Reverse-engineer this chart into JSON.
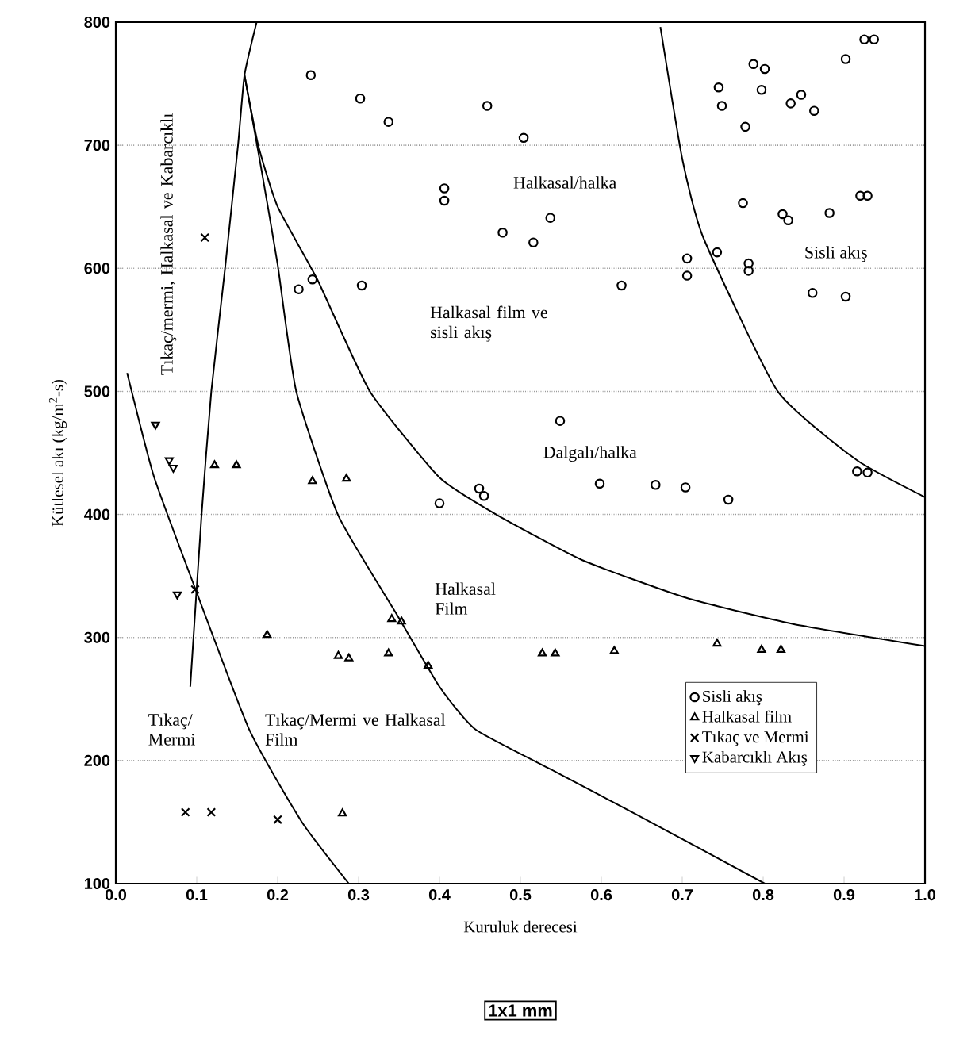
{
  "chart_data": {
    "type": "scatter",
    "xlabel": "Kuruluk derecesi",
    "ylabel": "Kütlesel akı (kg/m$^{2}$-s)",
    "xlim": [
      0,
      1
    ],
    "ylim": [
      100,
      800
    ],
    "xticks": [
      {
        "value": 0,
        "label": "0.0"
      },
      {
        "value": 0.1,
        "label": "0.1"
      },
      {
        "value": 0.2,
        "label": "0.2"
      },
      {
        "value": 0.3,
        "label": "0.3"
      },
      {
        "value": 0.4,
        "label": "0.4"
      },
      {
        "value": 0.5,
        "label": "0.5"
      },
      {
        "value": 0.6,
        "label": "0.6"
      },
      {
        "value": 0.7,
        "label": "0.7"
      },
      {
        "value": 0.8,
        "label": "0.8"
      },
      {
        "value": 0.9,
        "label": "0.9"
      },
      {
        "value": 1,
        "label": "1.0"
      }
    ],
    "yticks": [
      100,
      200,
      300,
      400,
      500,
      600,
      700,
      800
    ],
    "grid": "y",
    "legend": "bottom right",
    "series": [
      {
        "name": "Sisli akış",
        "color": "#000000",
        "marker": "circle",
        "x": [
          0.241,
          0.302,
          0.337,
          0.459,
          0.406,
          0.406,
          0.478,
          0.226,
          0.243,
          0.304,
          0.4,
          0.449,
          0.455,
          0.504,
          0.537,
          0.516,
          0.625,
          0.549,
          0.598,
          0.667,
          0.704,
          0.757,
          0.916,
          0.929,
          0.925,
          0.937,
          0.902,
          0.788,
          0.802,
          0.745,
          0.749,
          0.798,
          0.847,
          0.834,
          0.863,
          0.778,
          0.775,
          0.824,
          0.831,
          0.882,
          0.92,
          0.929,
          0.706,
          0.706,
          0.743,
          0.782,
          0.782,
          0.861,
          0.902
        ],
        "values": [
          757,
          738,
          719,
          732,
          665,
          655,
          629,
          583,
          591,
          586,
          409,
          421,
          415,
          706,
          641,
          621,
          586,
          476,
          425,
          424,
          422,
          412,
          435,
          434,
          786,
          786,
          770,
          766,
          762,
          747,
          732,
          745,
          741,
          734,
          728,
          715,
          653,
          644,
          639,
          645,
          659,
          659,
          608,
          594,
          613,
          604,
          598,
          580,
          577
        ]
      },
      {
        "name": "Halkasal film",
        "color": "#000000",
        "marker": "triangle",
        "x": [
          0.122,
          0.149,
          0.243,
          0.285,
          0.187,
          0.275,
          0.288,
          0.337,
          0.341,
          0.353,
          0.386,
          0.28,
          0.527,
          0.543,
          0.616,
          0.743,
          0.798,
          0.822
        ],
        "values": [
          440,
          440,
          427,
          429,
          302,
          285,
          283,
          287,
          315,
          313,
          277,
          157,
          287,
          287,
          289,
          295,
          290,
          290
        ]
      },
      {
        "name": "Tıkaç ve Mermi",
        "color": "#000000",
        "marker": "cross",
        "x": [
          0.086,
          0.118,
          0.2,
          0.098,
          0.11
        ],
        "values": [
          158,
          158,
          152,
          339,
          625
        ]
      },
      {
        "name": "Kabarcıklı Akış",
        "color": "#000000",
        "marker": "triangle-down",
        "x": [
          0.076,
          0.049,
          0.066,
          0.071
        ],
        "values": [
          335,
          473,
          444,
          438
        ]
      },
      {
        "type": "line",
        "color": "#000000",
        "marker": "none",
        "line_style": "solid",
        "x": [
          0.014,
          0.047,
          0.098,
          0.165,
          0.23,
          0.288
        ],
        "values": [
          515,
          431,
          340,
          225,
          150,
          100
        ]
      },
      {
        "type": "line",
        "color": "#000000",
        "marker": "none",
        "line_style": "solid",
        "x": [
          0.092,
          0.106,
          0.118,
          0.135,
          0.151,
          0.159,
          0.174
        ],
        "values": [
          260,
          400,
          500,
          600,
          700,
          757,
          800
        ]
      },
      {
        "type": "line",
        "color": "#000000",
        "marker": "none",
        "line_style": "solid",
        "x": [
          0.159,
          0.18,
          0.2,
          0.223,
          0.275,
          0.347,
          0.4,
          0.445,
          0.543,
          0.641,
          0.802
        ],
        "values": [
          757,
          680,
          603,
          500,
          399,
          319,
          260,
          225,
          191,
          157,
          100
        ]
      },
      {
        "type": "line",
        "color": "#000000",
        "marker": "none",
        "line_style": "solid",
        "x": [
          0.159,
          0.176,
          0.2,
          0.249,
          0.314,
          0.4,
          0.47,
          0.576,
          0.706,
          0.837,
          1.0
        ],
        "values": [
          757,
          700,
          650,
          591,
          500,
          430,
          400,
          363,
          332,
          311,
          293
        ]
      },
      {
        "type": "line",
        "color": "#000000",
        "marker": "none",
        "line_style": "solid",
        "x": [
          0.673,
          0.7,
          0.726,
          0.818,
          0.916,
          1.0
        ],
        "values": [
          796,
          689,
          625,
          500,
          444,
          414
        ]
      }
    ],
    "annotations": [
      "Tıkaç/mermi, Halkasal ve Kabarcıklı",
      "Halkasal/halka",
      "Halkasal film ve sisli akış",
      "Sisli akış",
      "Dalgalı/halka",
      "Halkasal Film",
      "Tıkaç/ Mermi",
      "Tıkaç/Mermi ve Halkasal Film",
      "1x1 mm"
    ]
  }
}
